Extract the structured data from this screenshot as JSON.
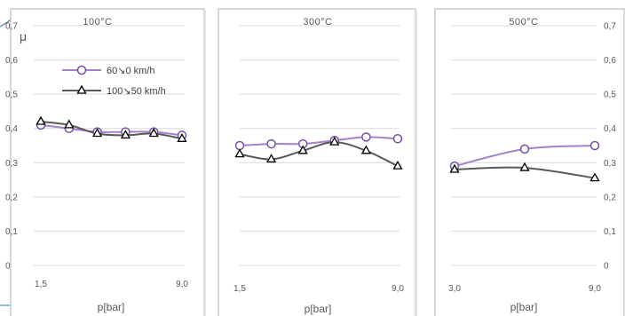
{
  "colors": {
    "series_purple": "#A383C6",
    "series_gray": "#595959",
    "grid": "#D9D9D9",
    "text": "#595959",
    "frame": "#BFBFBF"
  },
  "y_axis": {
    "label": "μ",
    "range": [
      0,
      0.7
    ],
    "ticks": [
      "0",
      "0,1",
      "0,2",
      "0,3",
      "0,4",
      "0,5",
      "0,6",
      "0,7"
    ]
  },
  "legend": [
    {
      "label": "60↘0 km/h",
      "marker": "circle"
    },
    {
      "label": "100↘50 km/h",
      "marker": "triangle"
    }
  ],
  "chart_data": [
    {
      "type": "line",
      "title": "100°C",
      "xlabel": "p[bar]",
      "ylabel": "μ",
      "x_tick_labels": [
        "1,5",
        "9,0"
      ],
      "xlim": [
        1.5,
        9.0
      ],
      "ylim": [
        0,
        0.7
      ],
      "grid": true,
      "legend_position": "top-left",
      "series": [
        {
          "name": "60↘0 km/h",
          "x": [
            1.5,
            3.0,
            4.5,
            6.0,
            7.5,
            9.0
          ],
          "values": [
            0.41,
            0.4,
            0.39,
            0.39,
            0.39,
            0.38
          ]
        },
        {
          "name": "100↘50 km/h",
          "x": [
            1.5,
            3.0,
            4.5,
            6.0,
            7.5,
            9.0
          ],
          "values": [
            0.42,
            0.41,
            0.385,
            0.38,
            0.385,
            0.37
          ]
        }
      ]
    },
    {
      "type": "line",
      "title": "300°C",
      "xlabel": "p[bar]",
      "ylabel": "",
      "x_tick_labels": [
        "1,5",
        "9,0"
      ],
      "xlim": [
        1.5,
        9.0
      ],
      "ylim": [
        0,
        0.7
      ],
      "grid": true,
      "series": [
        {
          "name": "60↘0 km/h",
          "x": [
            1.5,
            3.0,
            4.5,
            6.0,
            7.5,
            9.0
          ],
          "values": [
            0.35,
            0.355,
            0.355,
            0.365,
            0.375,
            0.37
          ]
        },
        {
          "name": "100↘50 km/h",
          "x": [
            1.5,
            3.0,
            4.5,
            6.0,
            7.5,
            9.0
          ],
          "values": [
            0.325,
            0.31,
            0.335,
            0.36,
            0.335,
            0.29
          ]
        }
      ]
    },
    {
      "type": "line",
      "title": "500°C",
      "xlabel": "p[bar]",
      "ylabel": "",
      "x_tick_labels": [
        "3,0",
        "9,0"
      ],
      "xlim": [
        3.0,
        9.0
      ],
      "ylim": [
        0,
        0.7
      ],
      "grid": true,
      "series": [
        {
          "name": "60↘0 km/h",
          "x": [
            3.0,
            6.0,
            9.0
          ],
          "values": [
            0.29,
            0.34,
            0.35
          ]
        },
        {
          "name": "100↘50 km/h",
          "x": [
            3.0,
            6.0,
            9.0
          ],
          "values": [
            0.28,
            0.285,
            0.255
          ]
        }
      ]
    }
  ]
}
